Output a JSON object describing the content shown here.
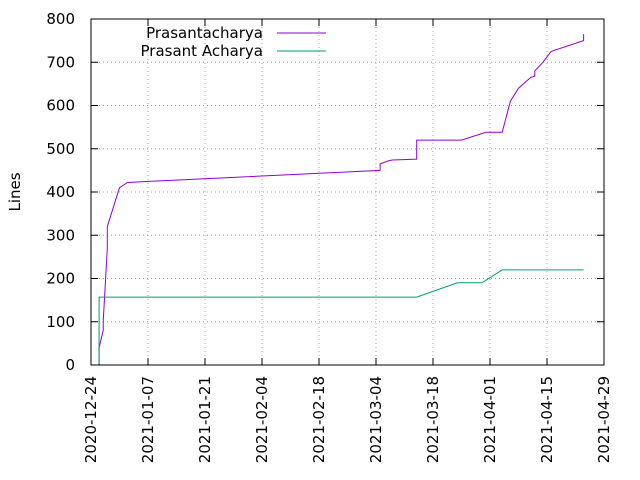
{
  "chart_data": {
    "type": "line",
    "title": "",
    "xlabel": "",
    "ylabel": "Lines",
    "xlim": [
      "2020-12-24",
      "2021-04-29"
    ],
    "ylim": [
      0,
      800
    ],
    "grid": true,
    "legend_position": "top-left",
    "x_ticks": [
      "2020-12-24",
      "2021-01-07",
      "2021-01-21",
      "2021-02-04",
      "2021-02-18",
      "2021-03-04",
      "2021-03-18",
      "2021-04-01",
      "2021-04-15",
      "2021-04-29"
    ],
    "y_ticks": [
      0,
      100,
      200,
      300,
      400,
      500,
      600,
      700,
      800
    ],
    "series": [
      {
        "name": "Prasantacharya",
        "color": "#9400d3",
        "points": [
          [
            "2020-12-26",
            0
          ],
          [
            "2020-12-26",
            40
          ],
          [
            "2020-12-27",
            80
          ],
          [
            "2020-12-27",
            100
          ],
          [
            "2020-12-28",
            270
          ],
          [
            "2020-12-28",
            320
          ],
          [
            "2020-12-30",
            380
          ],
          [
            "2020-12-31",
            410
          ],
          [
            "2021-01-02",
            422
          ],
          [
            "2021-01-06",
            424
          ],
          [
            "2021-03-05",
            450
          ],
          [
            "2021-03-05",
            465
          ],
          [
            "2021-03-07",
            472
          ],
          [
            "2021-03-08",
            474
          ],
          [
            "2021-03-14",
            476
          ],
          [
            "2021-03-14",
            520
          ],
          [
            "2021-03-25",
            520
          ],
          [
            "2021-03-31",
            538
          ],
          [
            "2021-04-04",
            538
          ],
          [
            "2021-04-06",
            610
          ],
          [
            "2021-04-08",
            640
          ],
          [
            "2021-04-11",
            665
          ],
          [
            "2021-04-12",
            668
          ],
          [
            "2021-04-12",
            680
          ],
          [
            "2021-04-14",
            700
          ],
          [
            "2021-04-16",
            725
          ],
          [
            "2021-04-24",
            750
          ],
          [
            "2021-04-24",
            765
          ]
        ]
      },
      {
        "name": "Prasant Acharya",
        "color": "#009e73",
        "points": [
          [
            "2020-12-26",
            0
          ],
          [
            "2020-12-26",
            157
          ],
          [
            "2021-03-14",
            157
          ],
          [
            "2021-03-24",
            190
          ],
          [
            "2021-03-30",
            190
          ],
          [
            "2021-04-04",
            220
          ],
          [
            "2021-04-24",
            220
          ]
        ]
      }
    ]
  }
}
